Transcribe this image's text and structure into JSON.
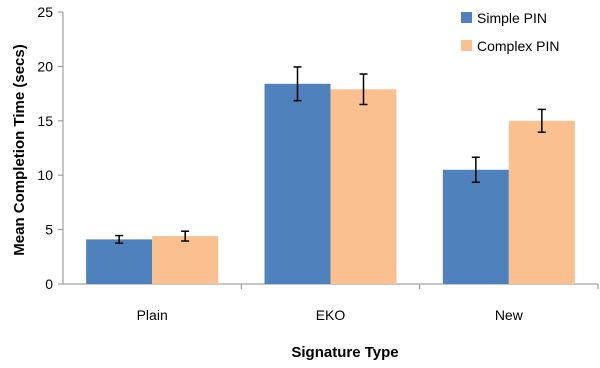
{
  "chart_data": {
    "type": "bar",
    "xlabel": "Signature Type",
    "ylabel": "Mean Completion Time (secs)",
    "categories": [
      "Plain",
      "EKO",
      "New"
    ],
    "ylim": [
      0,
      25
    ],
    "yticks": [
      0,
      5,
      10,
      15,
      20,
      25
    ],
    "grid": false,
    "legend_position": "top-right",
    "error_bars": true,
    "series": [
      {
        "name": "Simple PIN",
        "color": "#4f81bd",
        "values": [
          4.1,
          18.4,
          10.5
        ],
        "errors": [
          0.35,
          1.55,
          1.15
        ]
      },
      {
        "name": "Complex PIN",
        "color": "#fac090",
        "values": [
          4.4,
          17.9,
          15.0
        ],
        "errors": [
          0.45,
          1.4,
          1.05
        ]
      }
    ]
  }
}
